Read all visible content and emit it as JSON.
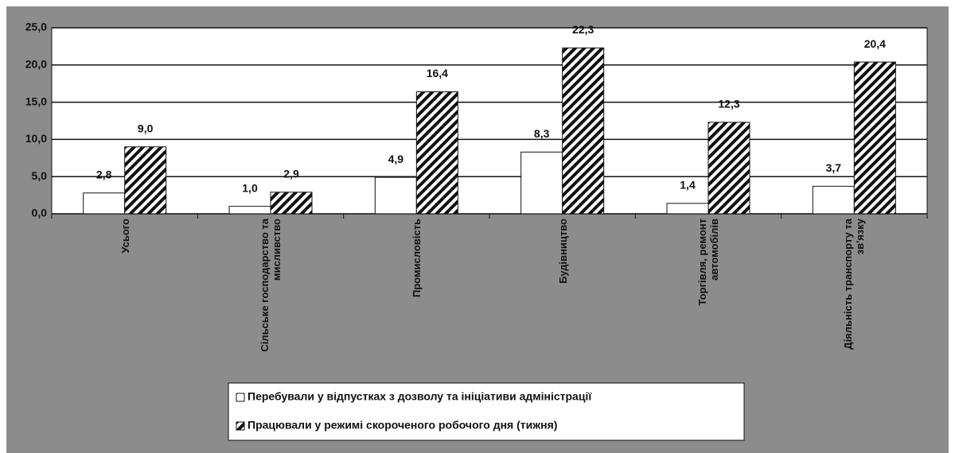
{
  "chart_data": {
    "type": "bar",
    "categories": [
      "Усього",
      "Сільське господарство та мисливство",
      "Промисловість",
      "Будівництво",
      "Торгівля, ремонт автомобілів",
      "Діяльність транспорту та зв'язку"
    ],
    "series": [
      {
        "name": "Перебували у відпустках з дозволу та ініціативи адміністрації",
        "color": "#ffffff",
        "pattern": "solid",
        "values": [
          2.8,
          1.0,
          4.9,
          8.3,
          1.4,
          3.7
        ],
        "value_labels": [
          "2,8",
          "1,0",
          "4,9",
          "8,3",
          "1,4",
          "3,7"
        ]
      },
      {
        "name": "Працювали у режимі скороченого робочого дня (тижня)",
        "color": "#ffffff",
        "pattern": "hatch",
        "values": [
          9.0,
          2.9,
          16.4,
          22.3,
          12.3,
          20.4
        ],
        "value_labels": [
          "9,0",
          "2,9",
          "16,4",
          "22,3",
          "12,3",
          "20,4"
        ]
      }
    ],
    "ylim": [
      0,
      25
    ],
    "yticks": [
      {
        "value": 0,
        "label": "0,0"
      },
      {
        "value": 5,
        "label": "5,0"
      },
      {
        "value": 10,
        "label": "10,0"
      },
      {
        "value": 15,
        "label": "15,0"
      },
      {
        "value": 20,
        "label": "20,0"
      },
      {
        "value": 25,
        "label": "25,0"
      }
    ],
    "grid": true
  }
}
